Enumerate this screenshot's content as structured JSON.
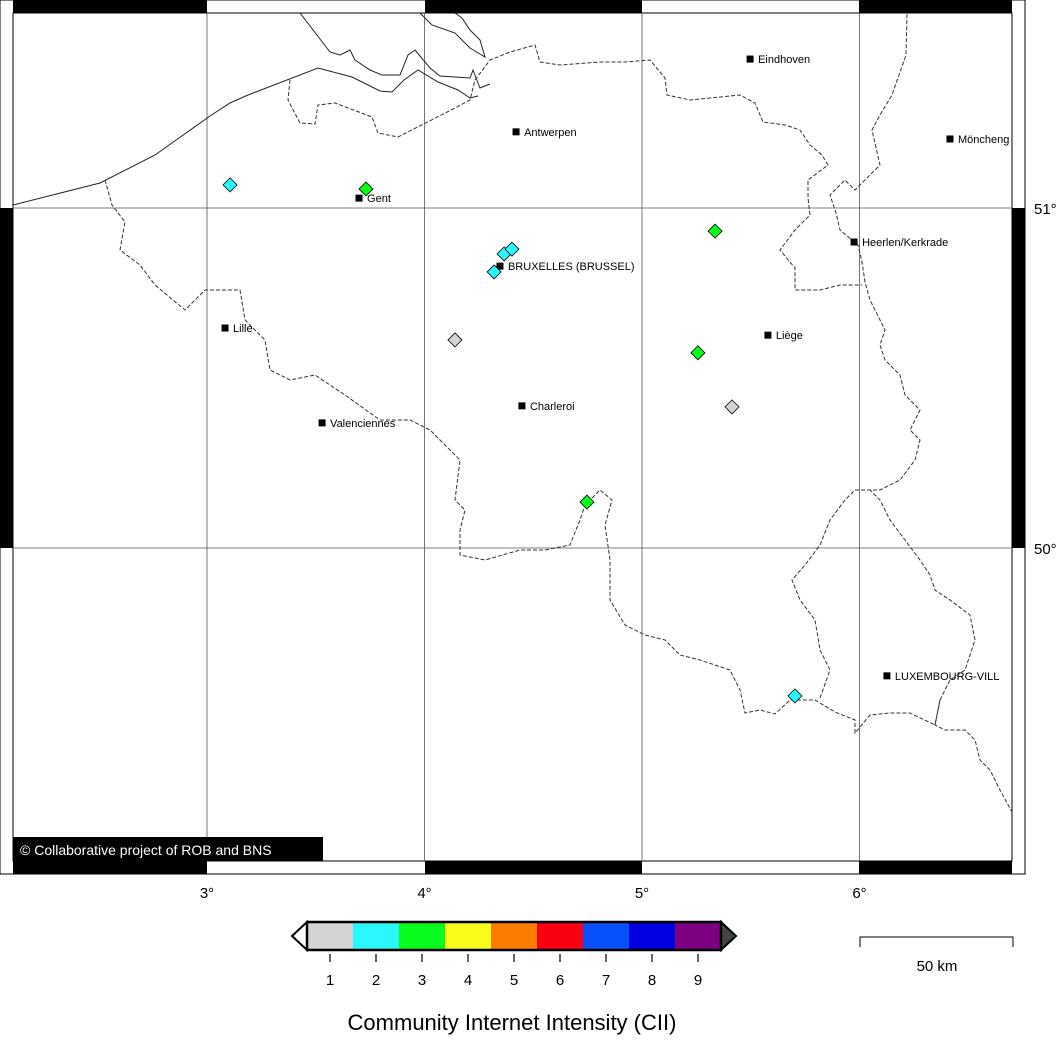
{
  "map": {
    "lon_ticks": [
      {
        "value": 3,
        "label": "3°"
      },
      {
        "value": 4,
        "label": "4°"
      },
      {
        "value": 5,
        "label": "5°"
      },
      {
        "value": 6,
        "label": "6°"
      }
    ],
    "lat_ticks": [
      {
        "value": 51,
        "label": "51°"
      },
      {
        "value": 50,
        "label": "50°"
      }
    ],
    "extent": {
      "lon": [
        2.05,
        6.65
      ],
      "lat": [
        49.24,
        51.58
      ]
    },
    "grid": true,
    "copyright": "© Collaborative project of ROB and BNS",
    "cities": [
      {
        "name": "Eindhoven",
        "lon": 5.497,
        "lat": 51.438
      },
      {
        "name": "Antwerpen",
        "lon": 4.421,
        "lat": 51.224
      },
      {
        "name": "Gent",
        "lon": 3.699,
        "lat": 51.029
      },
      {
        "name": "Möncheng",
        "lon": 6.416,
        "lat": 51.203
      },
      {
        "name": "Heerlen/Kerkrade",
        "lon": 5.975,
        "lat": 50.9
      },
      {
        "name": "BRUXELLES (BRUSSEL)",
        "lon": 4.347,
        "lat": 50.829
      },
      {
        "name": "Lille",
        "lon": 3.083,
        "lat": 50.647
      },
      {
        "name": "Liège",
        "lon": 5.579,
        "lat": 50.626
      },
      {
        "name": "Charleroi",
        "lon": 4.448,
        "lat": 50.418
      },
      {
        "name": "Valenciennes",
        "lon": 3.529,
        "lat": 50.368
      },
      {
        "name": "LUXEMBOURG-VILL",
        "lon": 6.126,
        "lat": 49.624
      }
    ],
    "observations": [
      {
        "lon": 3.106,
        "lat": 51.068,
        "cii": 2
      },
      {
        "lon": 3.731,
        "lat": 51.056,
        "cii": 3
      },
      {
        "lon": 4.366,
        "lat": 50.865,
        "cii": 2
      },
      {
        "lon": 4.402,
        "lat": 50.879,
        "cii": 2
      },
      {
        "lon": 4.32,
        "lat": 50.812,
        "cii": 2
      },
      {
        "lon": 5.336,
        "lat": 50.932,
        "cii": 3
      },
      {
        "lon": 4.14,
        "lat": 50.612,
        "cii": 1
      },
      {
        "lon": 5.257,
        "lat": 50.574,
        "cii": 3
      },
      {
        "lon": 5.414,
        "lat": 50.415,
        "cii": 1
      },
      {
        "lon": 4.747,
        "lat": 50.135,
        "cii": 3
      },
      {
        "lon": 5.703,
        "lat": 49.565,
        "cii": 2
      }
    ]
  },
  "legend": {
    "title": "Community Internet Intensity (CII)",
    "levels": [
      {
        "label": "1",
        "color": "#d3d3d3"
      },
      {
        "label": "2",
        "color": "#2af8fc"
      },
      {
        "label": "3",
        "color": "#08fc1c"
      },
      {
        "label": "4",
        "color": "#fafc1c"
      },
      {
        "label": "5",
        "color": "#fc7c00"
      },
      {
        "label": "6",
        "color": "#fa0010"
      },
      {
        "label": "7",
        "color": "#0850fc"
      },
      {
        "label": "8",
        "color": "#0000e0"
      },
      {
        "label": "9",
        "color": "#7c0080"
      }
    ],
    "over_color": "#444444"
  },
  "scale_bar": {
    "label": "50 km"
  }
}
